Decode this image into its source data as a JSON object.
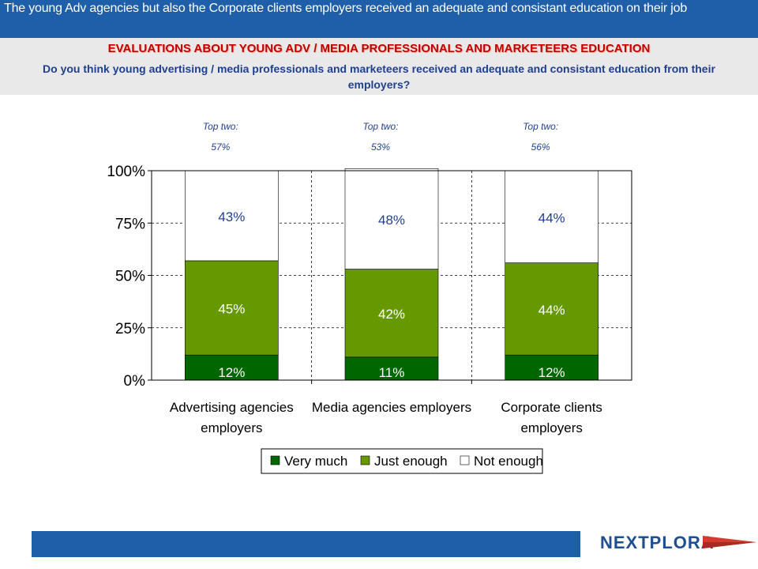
{
  "header": {
    "title": "The young Adv agencies but also the Corporate clients employers received an adequate and consistant education on their job"
  },
  "subheader": {
    "title": "EVALUATIONS ABOUT YOUNG ADV / MEDIA PROFESSIONALS AND MARKETEERS EDUCATION",
    "question": "Do you think young advertising / media professionals and marketeers received an adequate and consistant education from their employers?"
  },
  "logo": {
    "text": "NEXTPLORA"
  },
  "chart_data": {
    "type": "bar",
    "stacked": true,
    "categories": [
      [
        "Advertising agencies",
        "employers"
      ],
      [
        "Media agencies employers"
      ],
      [
        "Corporate clients",
        "employers"
      ]
    ],
    "series": [
      {
        "name": "Very much",
        "values": [
          12,
          11,
          12
        ],
        "labels": [
          "12%",
          "11%",
          "12%"
        ],
        "color": "#006600"
      },
      {
        "name": "Just enough",
        "values": [
          45,
          42,
          44
        ],
        "labels": [
          "45%",
          "42%",
          "44%"
        ],
        "color": "#669900"
      },
      {
        "name": "Not enough",
        "values": [
          43,
          48,
          44
        ],
        "labels": [
          "43%",
          "48%",
          "44%"
        ],
        "color": "#ffffff"
      }
    ],
    "top_two": [
      {
        "label": "Top two:",
        "value": "57%"
      },
      {
        "label": "Top two:",
        "value": "53%"
      },
      {
        "label": "Top two:",
        "value": "56%"
      }
    ],
    "ylim": [
      0,
      100
    ],
    "yticks": [
      {
        "value": 0,
        "label": "0%"
      },
      {
        "value": 25,
        "label": "25%"
      },
      {
        "value": 50,
        "label": "50%"
      },
      {
        "value": 75,
        "label": "75%"
      },
      {
        "value": 100,
        "label": "100%"
      }
    ],
    "grid": true,
    "legend_position": "bottom",
    "colors": {
      "label_on_dark": "#ffffff",
      "label_on_light": "#1f3f8f",
      "top_two": "#1f3f8f"
    }
  }
}
